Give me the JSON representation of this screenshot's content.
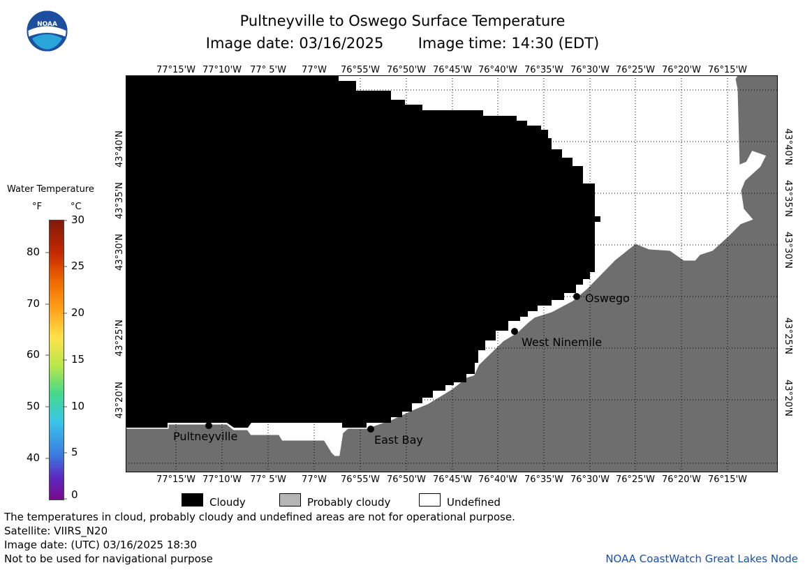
{
  "title": "Pultneyville to Oswego Surface Temperature",
  "subtitle": {
    "image_date": "Image date: 03/16/2025",
    "image_time": "Image time: 14:30 (EDT)"
  },
  "logo": {
    "text": "NOAA",
    "icon": "noaa-logo"
  },
  "longitudes": [
    "77°15'W",
    "77°10'W",
    "77° 5'W",
    "77°W",
    "76°55'W",
    "76°50'W",
    "76°45'W",
    "76°40'W",
    "76°35'W",
    "76°30'W",
    "76°25'W",
    "76°20'W",
    "76°15'W"
  ],
  "latitudes": [
    "43°40'N",
    "43°35'N",
    "43°30'N",
    "43°25'N",
    "43°20'N"
  ],
  "places": {
    "pultneyville": "Pultneyville",
    "east_bay": "East Bay",
    "west_ninemile": "West Ninemile",
    "oswego": "Oswego"
  },
  "colorbar": {
    "title": "Water Temperature",
    "unit_f": "°F",
    "unit_c": "°C",
    "f_ticks": [
      "80",
      "70",
      "60",
      "50",
      "40"
    ],
    "c_ticks": [
      "30",
      "25",
      "20",
      "15",
      "10",
      "5",
      "0"
    ]
  },
  "legend": {
    "cloudy": "Cloudy",
    "probably_cloudy": "Probably cloudy",
    "undefined": "Undefined"
  },
  "colors": {
    "cloud": "#000000",
    "land": "#6e6e6e",
    "undefined": "#ffffff",
    "probably_cloudy": "#b5b5b5",
    "credit": "#1a4fa8"
  },
  "footer": {
    "note": "The temperatures in cloud, probably cloudy and undefined areas are not for operational purpose.",
    "satellite": "Satellite: VIIRS_N20",
    "utc_date": "Image date: (UTC) 03/16/2025  18:30",
    "disclaimer": "Not to be used for navigational purpose",
    "credit": "NOAA CoastWatch Great Lakes Node"
  }
}
